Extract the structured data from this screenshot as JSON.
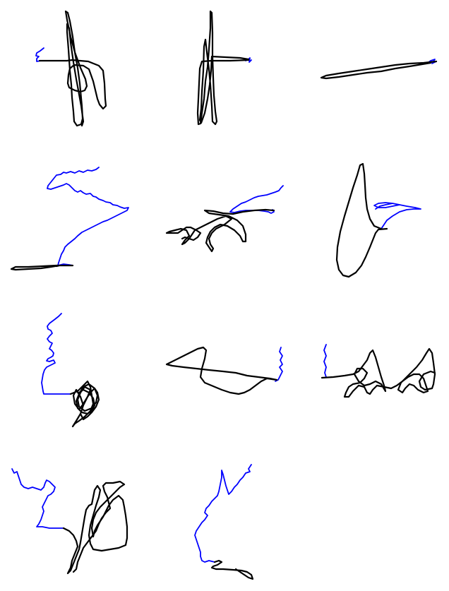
{
  "figure": {
    "background": "#ffffff",
    "series_colors": {
      "primary": "#000000",
      "secondary": "#0000ff"
    },
    "grid": {
      "rows": 4,
      "cols": 3,
      "panel_count": 11
    },
    "axes_visible": false
  }
}
